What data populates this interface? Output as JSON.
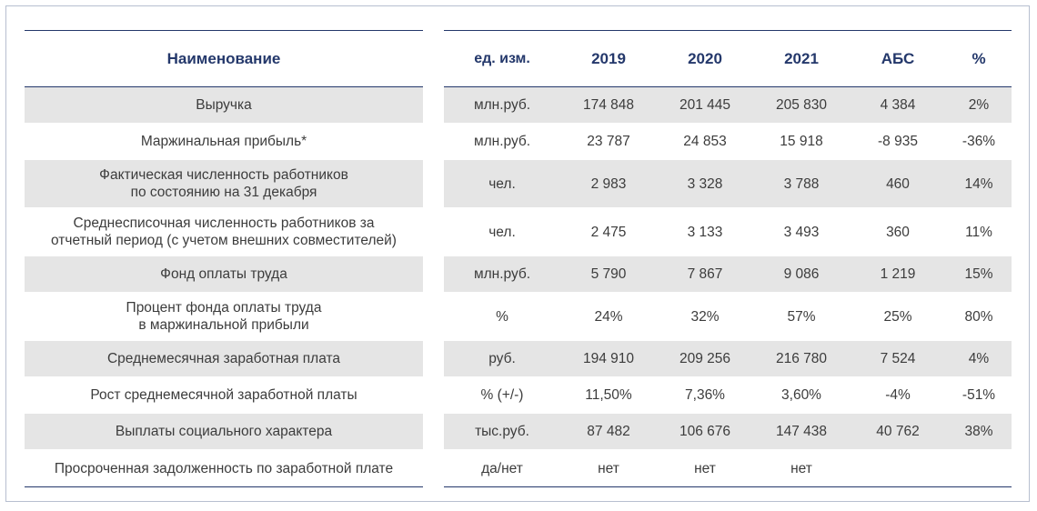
{
  "table": {
    "header": {
      "name": "Наименование",
      "unit": "ед. изм.",
      "y2019": "2019",
      "y2020": "2020",
      "y2021": "2021",
      "abs": "АБС",
      "pct": "%"
    },
    "rows": [
      {
        "name_l1": "Выручка",
        "name_l2": "",
        "unit": "млн.руб.",
        "y2019": "174 848",
        "y2020": "201 445",
        "y2021": "205 830",
        "abs": "4 384",
        "pct": "2%"
      },
      {
        "name_l1": "Маржинальная прибыль*",
        "name_l2": "",
        "unit": "млн.руб.",
        "y2019": "23 787",
        "y2020": "24 853",
        "y2021": "15 918",
        "abs": "-8 935",
        "pct": "-36%"
      },
      {
        "name_l1": "Фактическая численность работников",
        "name_l2": "по состоянию на 31 декабря",
        "unit": "чел.",
        "y2019": "2 983",
        "y2020": "3 328",
        "y2021": "3 788",
        "abs": "460",
        "pct": "14%"
      },
      {
        "name_l1": "Среднесписочная численность работников за",
        "name_l2": "отчетный период (с учетом внешних совместителей)",
        "unit": "чел.",
        "y2019": "2 475",
        "y2020": "3 133",
        "y2021": "3 493",
        "abs": "360",
        "pct": "11%"
      },
      {
        "name_l1": "Фонд оплаты труда",
        "name_l2": "",
        "unit": "млн.руб.",
        "y2019": "5 790",
        "y2020": "7 867",
        "y2021": "9 086",
        "abs": "1 219",
        "pct": "15%"
      },
      {
        "name_l1": "Процент фонда оплаты труда",
        "name_l2": "в маржинальной прибыли",
        "unit": "%",
        "y2019": "24%",
        "y2020": "32%",
        "y2021": "57%",
        "abs": "25%",
        "pct": "80%"
      },
      {
        "name_l1": "Среднемесячная заработная плата",
        "name_l2": "",
        "unit": "руб.",
        "y2019": "194 910",
        "y2020": "209 256",
        "y2021": "216 780",
        "abs": "7 524",
        "pct": "4%"
      },
      {
        "name_l1": "Рост среднемесячной заработной платы",
        "name_l2": "",
        "unit": "% (+/-)",
        "y2019": "11,50%",
        "y2020": "7,36%",
        "y2021": "3,60%",
        "abs": "-4%",
        "pct": "-51%"
      },
      {
        "name_l1": "Выплаты социального характера",
        "name_l2": "",
        "unit": "тыс.руб.",
        "y2019": "87 482",
        "y2020": "106 676",
        "y2021": "147 438",
        "abs": "40 762",
        "pct": "38%"
      },
      {
        "name_l1": "Просроченная задолженность по заработной плате",
        "name_l2": "",
        "unit": "да/нет",
        "y2019": "нет",
        "y2020": "нет",
        "y2021": "нет",
        "abs": "",
        "pct": ""
      }
    ]
  }
}
